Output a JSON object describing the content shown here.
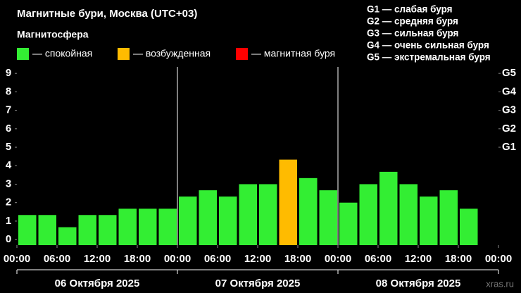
{
  "chart_data": {
    "type": "bar",
    "title": "Магнитные бури, Москва (UTC+03)",
    "legend_title": "Магнитосфера",
    "legend": [
      {
        "name": "— спокойная",
        "color": "#33ee33"
      },
      {
        "name": "— возбужденная",
        "color": "#ffbb00"
      },
      {
        "name": "— магнитная буря",
        "color": "#ff0000"
      }
    ],
    "g_scale": [
      "G1 — слабая буря",
      "G2 — средняя буря",
      "G3 — сильная буря",
      "G4 — очень сильная буря",
      "G5 — экстремальная буря"
    ],
    "x": [
      0,
      3,
      6,
      9,
      12,
      15,
      18,
      21,
      24,
      27,
      30,
      33,
      36,
      39,
      42,
      45,
      48,
      51,
      54,
      57,
      60,
      63,
      66,
      69
    ],
    "values": [
      1.33,
      1.33,
      0.67,
      1.33,
      1.33,
      1.67,
      1.67,
      1.67,
      2.33,
      2.67,
      2.33,
      3.0,
      3.0,
      4.33,
      3.33,
      2.67,
      2.0,
      3.0,
      3.67,
      3.0,
      2.33,
      2.67,
      1.67,
      null
    ],
    "colors": [
      "#33ee33",
      "#33ee33",
      "#33ee33",
      "#33ee33",
      "#33ee33",
      "#33ee33",
      "#33ee33",
      "#33ee33",
      "#33ee33",
      "#33ee33",
      "#33ee33",
      "#33ee33",
      "#33ee33",
      "#ffbb00",
      "#33ee33",
      "#33ee33",
      "#33ee33",
      "#33ee33",
      "#33ee33",
      "#33ee33",
      "#33ee33",
      "#33ee33",
      "#33ee33",
      null
    ],
    "xlim": [
      0,
      72
    ],
    "xticks": [
      {
        "value": 0,
        "label": "00:00"
      },
      {
        "value": 6,
        "label": "06:00"
      },
      {
        "value": 12,
        "label": "12:00"
      },
      {
        "value": 18,
        "label": "18:00"
      },
      {
        "value": 24,
        "label": "00:00"
      },
      {
        "value": 30,
        "label": "06:00"
      },
      {
        "value": 36,
        "label": "12:00"
      },
      {
        "value": 42,
        "label": "18:00"
      },
      {
        "value": 48,
        "label": "00:00"
      },
      {
        "value": 54,
        "label": "06:00"
      },
      {
        "value": 60,
        "label": "12:00"
      },
      {
        "value": 66,
        "label": "18:00"
      },
      {
        "value": 72,
        "label": "00:00"
      }
    ],
    "days": [
      "06 Октября 2025",
      "07 Октября 2025",
      "08 Октября 2025"
    ],
    "ylim": [
      -0.3,
      9.35
    ],
    "yticks": [
      0,
      1,
      2,
      3,
      4,
      5,
      6,
      7,
      8,
      9
    ],
    "y2lim": [
      -0.3,
      9.35
    ],
    "y2ticks": [
      {
        "value": 5,
        "label": "G1"
      },
      {
        "value": 6,
        "label": "G2"
      },
      {
        "value": 7,
        "label": "G3"
      },
      {
        "value": 8,
        "label": "G4"
      },
      {
        "value": 9,
        "label": "G5"
      }
    ],
    "grid": false,
    "watermark": "xras.ru"
  }
}
